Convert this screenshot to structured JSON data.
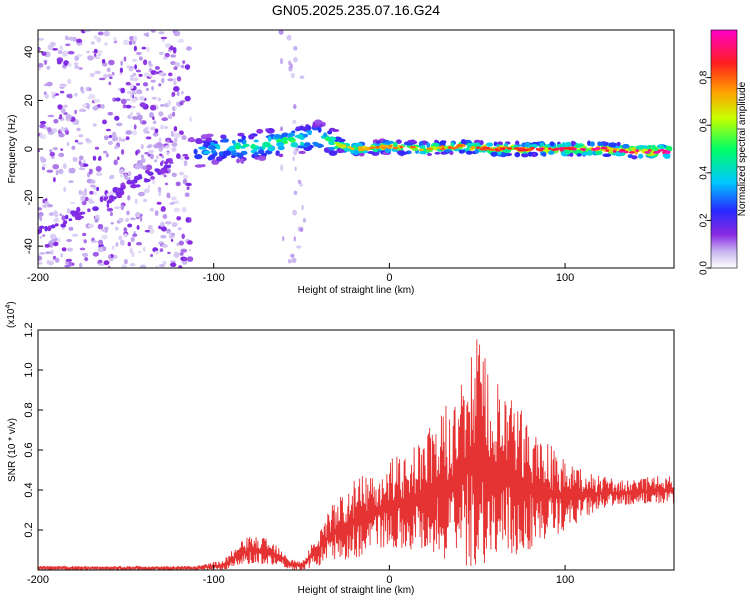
{
  "figure_title": "GN05.2025.235.07.16.G24",
  "colorbar": {
    "label": "Normalized spectral amplitude",
    "ticks": [
      "0.0",
      "0.2",
      "0.4",
      "0.6",
      "0.8"
    ],
    "tick_values": [
      0.0,
      0.2,
      0.4,
      0.6,
      0.8
    ],
    "range": [
      0,
      1
    ],
    "colors": [
      "#ffffff",
      "#c8b4f0",
      "#8a2be2",
      "#2828ff",
      "#00c8ff",
      "#00ff64",
      "#c8ff00",
      "#ffa000",
      "#ff1e1e",
      "#ff00c8"
    ]
  },
  "chart_data": [
    {
      "type": "heatmap",
      "title": "GN05.2025.235.07.16.G24",
      "xlabel": "Height of straight line (km)",
      "ylabel": "Frequency (Hz)",
      "xlim": [
        -200,
        162
      ],
      "ylim": [
        -49,
        49
      ],
      "xticks": [
        -200,
        -100,
        0,
        100
      ],
      "xtick_labels": [
        "-200",
        "-100",
        "0",
        "100"
      ],
      "yticks": [
        -40,
        -20,
        0,
        20,
        40
      ],
      "ytick_labels": [
        "-40",
        "-20",
        "0",
        "20",
        "40"
      ],
      "noise_region_x": [
        -200,
        -113
      ],
      "ridge_points": {
        "x": [
          -113,
          -100,
          -80,
          -60,
          -40,
          -30,
          -20,
          0,
          20,
          40,
          60,
          80,
          100,
          120,
          140,
          160
        ],
        "freq": [
          -2,
          0,
          1,
          3,
          5,
          2,
          0,
          1,
          0,
          1,
          0,
          0,
          0,
          0,
          -1,
          -1
        ],
        "amplitude": [
          0.35,
          0.45,
          0.5,
          0.55,
          0.5,
          0.6,
          0.65,
          0.7,
          0.7,
          0.72,
          0.75,
          0.8,
          0.82,
          0.85,
          0.9,
          0.9
        ]
      },
      "faint_line_points": {
        "x": [
          -200,
          -180,
          -160,
          -140,
          -120
        ],
        "freq": [
          -35,
          -28,
          -20,
          -12,
          -4
        ]
      }
    },
    {
      "type": "line",
      "xlabel": "Height of straight line (km)",
      "ylabel": "SNR (10 * v/v)",
      "y_multiplier": "(x10^4)",
      "y_multiplier_base": "(x10",
      "y_multiplier_exp": "4",
      "y_multiplier_close": ")",
      "xlim": [
        -200,
        162
      ],
      "ylim": [
        0,
        1.2
      ],
      "xticks": [
        -200,
        -100,
        0,
        100
      ],
      "xtick_labels": [
        "-200",
        "-100",
        "0",
        "100"
      ],
      "yticks": [
        0.2,
        0.4,
        0.6,
        0.8,
        1.0,
        1.2
      ],
      "ytick_labels": [
        "0.2",
        "0.4",
        "0.6",
        "0.8",
        "1.0",
        "1.2"
      ],
      "color": "#e53333",
      "envelope": {
        "x": [
          -200,
          -120,
          -110,
          -95,
          -85,
          -78,
          -70,
          -62,
          -56,
          -50,
          -40,
          -35,
          -30,
          -20,
          -10,
          0,
          10,
          20,
          30,
          40,
          50,
          60,
          70,
          80,
          90,
          100,
          110,
          120,
          130,
          140,
          150,
          162
        ],
        "low": [
          0.0,
          0.0,
          0.0,
          0.0,
          0.02,
          0.03,
          0.03,
          0.02,
          0.0,
          0.0,
          0.02,
          0.05,
          0.05,
          0.05,
          0.1,
          0.12,
          0.1,
          0.1,
          0.05,
          0.02,
          0.02,
          0.03,
          0.05,
          0.1,
          0.15,
          0.2,
          0.25,
          0.3,
          0.32,
          0.33,
          0.33,
          0.33
        ],
        "high": [
          0.02,
          0.02,
          0.02,
          0.05,
          0.14,
          0.18,
          0.16,
          0.12,
          0.06,
          0.04,
          0.2,
          0.3,
          0.35,
          0.45,
          0.5,
          0.55,
          0.6,
          0.68,
          0.8,
          0.92,
          1.2,
          0.95,
          0.85,
          0.75,
          0.65,
          0.55,
          0.5,
          0.48,
          0.45,
          0.45,
          0.47,
          0.47
        ]
      }
    }
  ]
}
